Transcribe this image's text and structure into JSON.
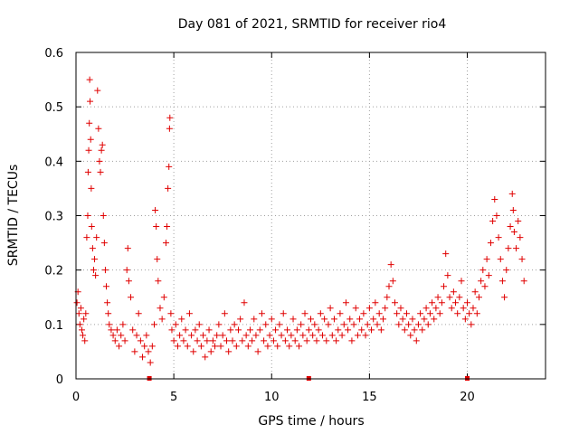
{
  "chart_data": {
    "type": "scatter",
    "title": "Day 081 of 2021, SRMTID for receiver rio4",
    "xlabel": "GPS time / hours",
    "ylabel": "SRMTID / TECUs",
    "xlim": [
      0,
      24
    ],
    "ylim": [
      0,
      0.6
    ],
    "xticks": [
      "0",
      "5",
      "10",
      "15",
      "20"
    ],
    "yticks": [
      "0",
      "0.1",
      "0.2",
      "0.3",
      "0.4",
      "0.5",
      "0.6"
    ],
    "grid": true,
    "marker": "plus",
    "color": "#e00000",
    "series": [
      {
        "name": "SRMTID",
        "points": [
          [
            0.05,
            0.14
          ],
          [
            0.1,
            0.16
          ],
          [
            0.15,
            0.12
          ],
          [
            0.2,
            0.1
          ],
          [
            0.25,
            0.13
          ],
          [
            0.3,
            0.09
          ],
          [
            0.35,
            0.08
          ],
          [
            0.4,
            0.11
          ],
          [
            0.45,
            0.07
          ],
          [
            0.5,
            0.12
          ],
          [
            0.55,
            0.26
          ],
          [
            0.6,
            0.3
          ],
          [
            0.62,
            0.38
          ],
          [
            0.65,
            0.42
          ],
          [
            0.68,
            0.47
          ],
          [
            0.7,
            0.55
          ],
          [
            0.72,
            0.51
          ],
          [
            0.75,
            0.44
          ],
          [
            0.78,
            0.35
          ],
          [
            0.8,
            0.28
          ],
          [
            0.85,
            0.24
          ],
          [
            0.9,
            0.2
          ],
          [
            0.95,
            0.22
          ],
          [
            1.0,
            0.19
          ],
          [
            1.05,
            0.26
          ],
          [
            1.1,
            0.53
          ],
          [
            1.15,
            0.46
          ],
          [
            1.2,
            0.4
          ],
          [
            1.25,
            0.38
          ],
          [
            1.3,
            0.42
          ],
          [
            1.35,
            0.43
          ],
          [
            1.4,
            0.3
          ],
          [
            1.45,
            0.25
          ],
          [
            1.5,
            0.2
          ],
          [
            1.55,
            0.17
          ],
          [
            1.6,
            0.14
          ],
          [
            1.65,
            0.12
          ],
          [
            1.7,
            0.1
          ],
          [
            1.8,
            0.09
          ],
          [
            1.9,
            0.08
          ],
          [
            2.0,
            0.07
          ],
          [
            2.1,
            0.09
          ],
          [
            2.2,
            0.06
          ],
          [
            2.3,
            0.08
          ],
          [
            2.4,
            0.1
          ],
          [
            2.5,
            0.07
          ],
          [
            2.6,
            0.2
          ],
          [
            2.65,
            0.24
          ],
          [
            2.7,
            0.18
          ],
          [
            2.8,
            0.15
          ],
          [
            2.9,
            0.09
          ],
          [
            3.0,
            0.05
          ],
          [
            3.1,
            0.08
          ],
          [
            3.2,
            0.12
          ],
          [
            3.3,
            0.07
          ],
          [
            3.4,
            0.04
          ],
          [
            3.5,
            0.06
          ],
          [
            3.6,
            0.08
          ],
          [
            3.7,
            0.05
          ],
          [
            3.8,
            0.03
          ],
          [
            3.9,
            0.06
          ],
          [
            4.0,
            0.1
          ],
          [
            4.05,
            0.31
          ],
          [
            4.1,
            0.28
          ],
          [
            4.15,
            0.22
          ],
          [
            4.2,
            0.18
          ],
          [
            4.3,
            0.13
          ],
          [
            4.4,
            0.11
          ],
          [
            4.5,
            0.15
          ],
          [
            4.6,
            0.25
          ],
          [
            4.65,
            0.28
          ],
          [
            4.7,
            0.35
          ],
          [
            4.75,
            0.39
          ],
          [
            4.78,
            0.46
          ],
          [
            4.8,
            0.48
          ],
          [
            4.85,
            0.12
          ],
          [
            4.9,
            0.09
          ],
          [
            5.0,
            0.07
          ],
          [
            5.1,
            0.1
          ],
          [
            5.2,
            0.06
          ],
          [
            5.3,
            0.08
          ],
          [
            5.4,
            0.11
          ],
          [
            5.5,
            0.07
          ],
          [
            5.6,
            0.09
          ],
          [
            5.7,
            0.06
          ],
          [
            5.8,
            0.12
          ],
          [
            5.9,
            0.08
          ],
          [
            6.0,
            0.05
          ],
          [
            6.1,
            0.09
          ],
          [
            6.2,
            0.07
          ],
          [
            6.3,
            0.1
          ],
          [
            6.4,
            0.06
          ],
          [
            6.5,
            0.08
          ],
          [
            6.6,
            0.04
          ],
          [
            6.7,
            0.07
          ],
          [
            6.8,
            0.09
          ],
          [
            6.9,
            0.05
          ],
          [
            7.0,
            0.07
          ],
          [
            7.1,
            0.06
          ],
          [
            7.2,
            0.08
          ],
          [
            7.3,
            0.1
          ],
          [
            7.4,
            0.06
          ],
          [
            7.5,
            0.08
          ],
          [
            7.6,
            0.12
          ],
          [
            7.7,
            0.07
          ],
          [
            7.8,
            0.05
          ],
          [
            7.9,
            0.09
          ],
          [
            8.0,
            0.07
          ],
          [
            8.1,
            0.1
          ],
          [
            8.2,
            0.06
          ],
          [
            8.3,
            0.09
          ],
          [
            8.4,
            0.11
          ],
          [
            8.5,
            0.07
          ],
          [
            8.6,
            0.14
          ],
          [
            8.7,
            0.08
          ],
          [
            8.8,
            0.06
          ],
          [
            8.9,
            0.09
          ],
          [
            9.0,
            0.07
          ],
          [
            9.1,
            0.11
          ],
          [
            9.2,
            0.08
          ],
          [
            9.3,
            0.05
          ],
          [
            9.4,
            0.09
          ],
          [
            9.5,
            0.12
          ],
          [
            9.6,
            0.07
          ],
          [
            9.7,
            0.1
          ],
          [
            9.8,
            0.06
          ],
          [
            9.9,
            0.08
          ],
          [
            10.0,
            0.11
          ],
          [
            10.1,
            0.07
          ],
          [
            10.2,
            0.09
          ],
          [
            10.3,
            0.06
          ],
          [
            10.4,
            0.1
          ],
          [
            10.5,
            0.08
          ],
          [
            10.6,
            0.12
          ],
          [
            10.7,
            0.07
          ],
          [
            10.8,
            0.09
          ],
          [
            10.9,
            0.06
          ],
          [
            11.0,
            0.08
          ],
          [
            11.1,
            0.11
          ],
          [
            11.2,
            0.07
          ],
          [
            11.3,
            0.09
          ],
          [
            11.4,
            0.06
          ],
          [
            11.5,
            0.1
          ],
          [
            11.6,
            0.08
          ],
          [
            11.7,
            0.12
          ],
          [
            11.8,
            0.07
          ],
          [
            11.9,
            0.09
          ],
          [
            12.0,
            0.11
          ],
          [
            12.1,
            0.08
          ],
          [
            12.2,
            0.1
          ],
          [
            12.3,
            0.07
          ],
          [
            12.4,
            0.09
          ],
          [
            12.5,
            0.12
          ],
          [
            12.6,
            0.08
          ],
          [
            12.7,
            0.11
          ],
          [
            12.8,
            0.07
          ],
          [
            12.9,
            0.1
          ],
          [
            13.0,
            0.13
          ],
          [
            13.1,
            0.08
          ],
          [
            13.2,
            0.11
          ],
          [
            13.3,
            0.07
          ],
          [
            13.4,
            0.09
          ],
          [
            13.5,
            0.12
          ],
          [
            13.6,
            0.08
          ],
          [
            13.7,
            0.1
          ],
          [
            13.8,
            0.14
          ],
          [
            13.9,
            0.09
          ],
          [
            14.0,
            0.11
          ],
          [
            14.1,
            0.07
          ],
          [
            14.2,
            0.1
          ],
          [
            14.3,
            0.13
          ],
          [
            14.4,
            0.08
          ],
          [
            14.5,
            0.11
          ],
          [
            14.6,
            0.09
          ],
          [
            14.7,
            0.12
          ],
          [
            14.8,
            0.08
          ],
          [
            14.9,
            0.1
          ],
          [
            15.0,
            0.13
          ],
          [
            15.1,
            0.09
          ],
          [
            15.2,
            0.11
          ],
          [
            15.3,
            0.14
          ],
          [
            15.4,
            0.1
          ],
          [
            15.5,
            0.12
          ],
          [
            15.6,
            0.09
          ],
          [
            15.7,
            0.11
          ],
          [
            15.8,
            0.13
          ],
          [
            15.9,
            0.15
          ],
          [
            16.0,
            0.17
          ],
          [
            16.1,
            0.21
          ],
          [
            16.2,
            0.18
          ],
          [
            16.3,
            0.14
          ],
          [
            16.4,
            0.12
          ],
          [
            16.5,
            0.1
          ],
          [
            16.6,
            0.13
          ],
          [
            16.7,
            0.11
          ],
          [
            16.8,
            0.09
          ],
          [
            16.9,
            0.12
          ],
          [
            17.0,
            0.1
          ],
          [
            17.1,
            0.08
          ],
          [
            17.2,
            0.11
          ],
          [
            17.3,
            0.09
          ],
          [
            17.4,
            0.07
          ],
          [
            17.5,
            0.1
          ],
          [
            17.6,
            0.12
          ],
          [
            17.7,
            0.09
          ],
          [
            17.8,
            0.11
          ],
          [
            17.9,
            0.13
          ],
          [
            18.0,
            0.1
          ],
          [
            18.1,
            0.12
          ],
          [
            18.2,
            0.14
          ],
          [
            18.3,
            0.11
          ],
          [
            18.4,
            0.13
          ],
          [
            18.5,
            0.15
          ],
          [
            18.6,
            0.12
          ],
          [
            18.7,
            0.14
          ],
          [
            18.8,
            0.17
          ],
          [
            18.9,
            0.23
          ],
          [
            19.0,
            0.19
          ],
          [
            19.1,
            0.15
          ],
          [
            19.2,
            0.13
          ],
          [
            19.3,
            0.16
          ],
          [
            19.4,
            0.14
          ],
          [
            19.5,
            0.12
          ],
          [
            19.6,
            0.15
          ],
          [
            19.7,
            0.18
          ],
          [
            19.8,
            0.13
          ],
          [
            19.9,
            0.11
          ],
          [
            20.0,
            0.14
          ],
          [
            20.1,
            0.12
          ],
          [
            20.2,
            0.1
          ],
          [
            20.3,
            0.13
          ],
          [
            20.4,
            0.16
          ],
          [
            20.5,
            0.12
          ],
          [
            20.6,
            0.15
          ],
          [
            20.7,
            0.18
          ],
          [
            20.8,
            0.2
          ],
          [
            20.9,
            0.17
          ],
          [
            21.0,
            0.22
          ],
          [
            21.1,
            0.19
          ],
          [
            21.2,
            0.25
          ],
          [
            21.3,
            0.29
          ],
          [
            21.4,
            0.33
          ],
          [
            21.5,
            0.3
          ],
          [
            21.6,
            0.26
          ],
          [
            21.7,
            0.22
          ],
          [
            21.8,
            0.18
          ],
          [
            21.9,
            0.15
          ],
          [
            22.0,
            0.2
          ],
          [
            22.1,
            0.24
          ],
          [
            22.2,
            0.28
          ],
          [
            22.3,
            0.34
          ],
          [
            22.35,
            0.31
          ],
          [
            22.4,
            0.27
          ],
          [
            22.5,
            0.24
          ],
          [
            22.6,
            0.29
          ],
          [
            22.7,
            0.26
          ],
          [
            22.8,
            0.22
          ],
          [
            22.9,
            0.18
          ]
        ]
      }
    ],
    "axis_markers_x": [
      3.75,
      11.9,
      20.0
    ]
  }
}
